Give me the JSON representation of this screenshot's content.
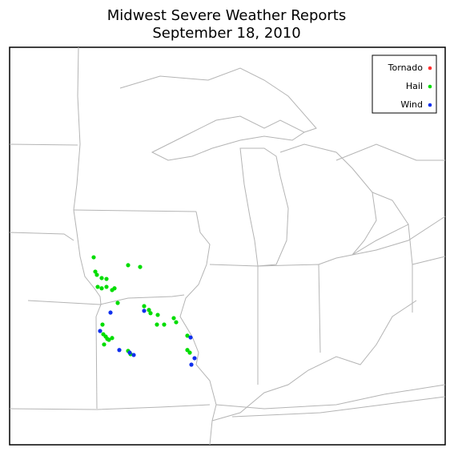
{
  "chart_data": {
    "type": "scatter",
    "title": "Midwest Severe Weather Reports",
    "subtitle": "September 18, 2010",
    "xlim": [
      -99.9,
      -78.14
    ],
    "ylim": [
      35.47,
      49.06
    ],
    "legend": "upper right",
    "series": [
      {
        "name": "Tornado",
        "color": "#ff3030",
        "x": [],
        "y": []
      },
      {
        "name": "Hail",
        "color": "#00dd00",
        "x": [
          -95.7,
          -95.62,
          -95.54,
          -95.3,
          -95.06,
          -95.5,
          -95.3,
          -95.06,
          -94.78,
          -94.66,
          -93.98,
          -93.38,
          -94.5,
          -93.18,
          -92.94,
          -92.86,
          -92.5,
          -92.54,
          -92.18,
          -91.7,
          -91.58,
          -91.02,
          -95.26,
          -95.1,
          -95.22,
          -95.02,
          -94.78,
          -95.18,
          -94.94,
          -93.98,
          -93.86,
          -91.02,
          -90.9
        ],
        "y": [
          41.88,
          41.39,
          41.28,
          41.17,
          41.14,
          40.87,
          40.82,
          40.87,
          40.76,
          40.82,
          41.61,
          41.55,
          40.32,
          40.21,
          40.08,
          39.97,
          39.91,
          39.58,
          39.58,
          39.8,
          39.66,
          39.2,
          39.58,
          39.17,
          39.25,
          39.09,
          39.12,
          38.9,
          39.06,
          38.68,
          38.57,
          38.71,
          38.62
        ]
      },
      {
        "name": "Wind",
        "color": "#1030ee",
        "x": [
          -94.86,
          -95.38,
          -93.18,
          -94.42,
          -93.9,
          -93.7,
          -90.86,
          -90.66,
          -90.82
        ],
        "y": [
          39.99,
          39.36,
          40.05,
          38.71,
          38.62,
          38.54,
          39.14,
          38.43,
          38.21
        ]
      }
    ]
  }
}
